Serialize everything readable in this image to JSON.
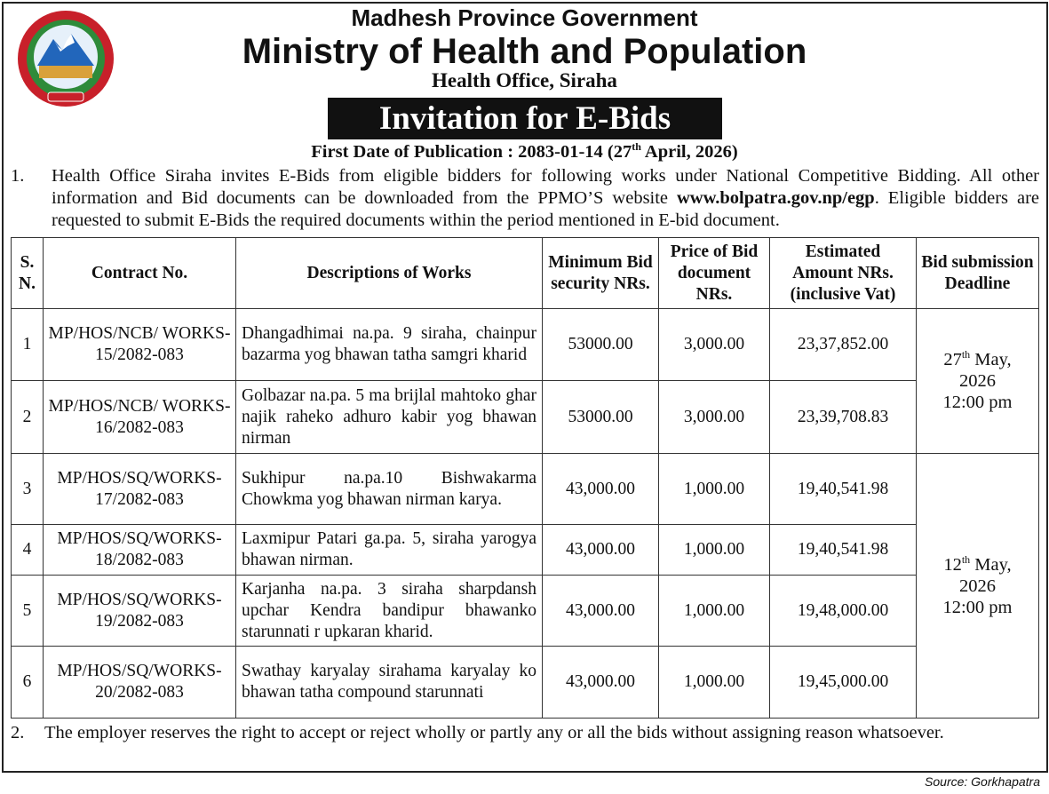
{
  "header": {
    "province": "Madhesh Province Government",
    "ministry": "Ministry of Health and Population",
    "office": "Health Office, Siraha",
    "title": "Invitation for E-Bids",
    "publication": {
      "before": "First Date of Publication : 2083-01-14 (27",
      "sup": "th",
      "after": " April, 2026)"
    }
  },
  "clauses": [
    {
      "number": "1.",
      "before": "Health Office Siraha invites E-Bids from eligible bidders for following works under National Competitive Bidding. All other information and Bid documents can be downloaded from the PPMO’S website ",
      "link": "www.bolpatra.gov.np/egp",
      "after": ". Eligible bidders are requested to submit E-Bids the required documents within the period mentioned in E-bid document."
    },
    {
      "number": "2.",
      "before": "The employer reserves the right to accept or reject wholly or partly any or all the bids without assigning reason whatsoever."
    }
  ],
  "table": {
    "headers": [
      "S. N.",
      "Contract No.",
      "Descriptions of Works",
      "Minimum Bid security NRs.",
      "Price of Bid document NRs.",
      "Estimated Amount NRs. (inclusive Vat)",
      "Bid submission Deadline"
    ],
    "rows": [
      [
        "1",
        "MP/HOS/NCB/ WORKS-15/2082-083",
        "Dhangadhimai na.pa. 9 siraha, chainpur bazarma yog bhawan tatha samgri kharid",
        "53000.00",
        "3,000.00",
        "23,37,852.00"
      ],
      [
        "2",
        "MP/HOS/NCB/ WORKS-16/2082-083",
        "Golbazar na.pa. 5 ma brijlal mahtoko ghar najik raheko adhuro kabir yog bhawan nirman",
        "53000.00",
        "3,000.00",
        "23,39,708.83"
      ],
      [
        "3",
        "MP/HOS/SQ/WORKS-17/2082-083",
        "Sukhipur na.pa.10 Bishwakarma Chowkma yog bhawan nirman karya.",
        "43,000.00",
        "1,000.00",
        "19,40,541.98"
      ],
      [
        "4",
        "MP/HOS/SQ/WORKS-18/2082-083",
        "Laxmipur Patari ga.pa. 5, siraha yarogya bhawan nirman.",
        "43,000.00",
        "1,000.00",
        "19,40,541.98"
      ],
      [
        "5",
        "MP/HOS/SQ/WORKS-19/2082-083",
        "Karjanha na.pa. 3 siraha sharpdansh upchar Kendra bandipur bhawanko starunnati r upkaran kharid.",
        "43,000.00",
        "1,000.00",
        "19,48,000.00"
      ],
      [
        "6",
        "MP/HOS/SQ/WORKS-20/2082-083",
        "Swathay karyalay sirahama karyalay ko bhawan tatha compound starunnati",
        "43,000.00",
        "1,000.00",
        "19,45,000.00"
      ]
    ],
    "deadlines": [
      {
        "day": "27",
        "sup": "th",
        "month": " May,",
        "year": "2026",
        "time": "12:00 pm"
      },
      {
        "day": "12",
        "sup": "th",
        "month": " May,",
        "year": "2026",
        "time": "12:00 pm"
      }
    ]
  },
  "source": "Source: Gorkhapatra"
}
